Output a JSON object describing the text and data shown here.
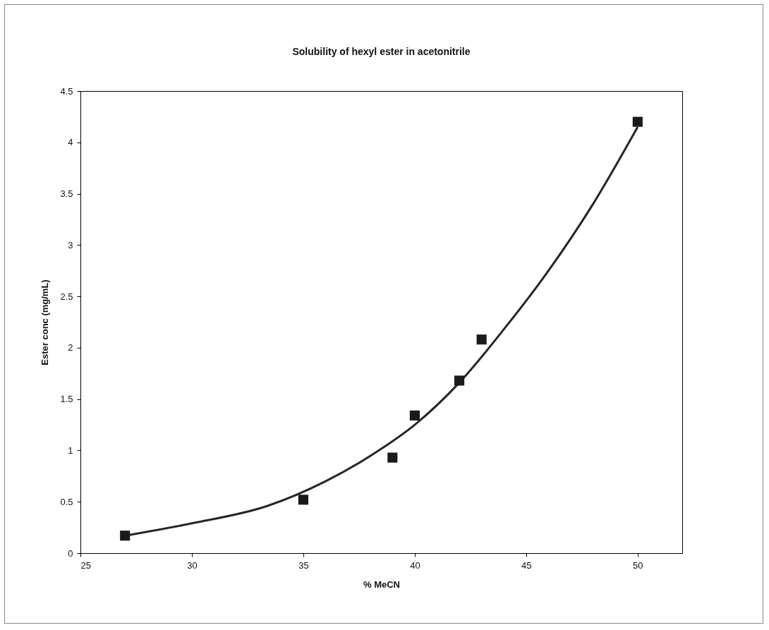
{
  "chart_data": {
    "type": "scatter",
    "title": "Solubility of hexyl ester in acetonitrile",
    "xlabel": "% MeCN",
    "ylabel": "Ester conc (mg/mL)",
    "series": [
      {
        "marker": "square",
        "color": "#1a1a1a",
        "x": [
          27,
          35,
          39,
          40,
          42,
          43,
          50
        ],
        "values": [
          0.17,
          0.52,
          0.93,
          1.34,
          1.68,
          2.08,
          4.2
        ]
      },
      {
        "type": "line",
        "marker": "none",
        "color": "#262626",
        "x": [
          27,
          30,
          33.4,
          36,
          38.6,
          40,
          42,
          44,
          46,
          48,
          50
        ],
        "values": [
          0.17,
          0.29,
          0.46,
          0.7,
          1.03,
          1.25,
          1.66,
          2.18,
          2.75,
          3.4,
          4.15
        ]
      }
    ],
    "xlim": [
      25,
      52
    ],
    "xticks": [
      25,
      30,
      35,
      40,
      45,
      50
    ],
    "ylim": [
      0,
      4.5
    ],
    "yticks": [
      0,
      0.5,
      1,
      1.5,
      2,
      2.5,
      3,
      3.5,
      4,
      4.5
    ],
    "line_style": "solid",
    "grid": false
  }
}
